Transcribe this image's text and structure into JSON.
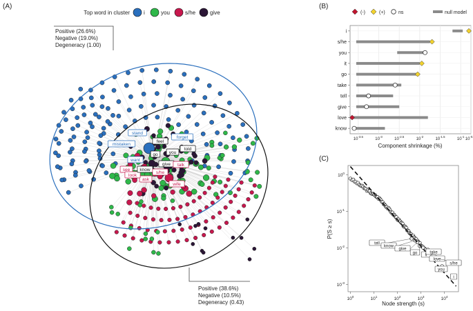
{
  "panels": {
    "a": "(A)",
    "b": "(B)",
    "c": "(C)"
  },
  "colors": {
    "i": "#2a6fbd",
    "you": "#2fb84a",
    "she": "#c8184e",
    "give": "#2b1636",
    "null_model": "#8a8a8a",
    "neg_marker": "#c0152f",
    "pos_marker": "#f2d22e"
  },
  "chart_data": [
    {
      "type": "network",
      "title": "Top word in cluster",
      "legend": [
        {
          "key": "i",
          "label": "i"
        },
        {
          "key": "you",
          "label": "you"
        },
        {
          "key": "she",
          "label": "s/he"
        },
        {
          "key": "give",
          "label": "give"
        }
      ],
      "cluster_blue": {
        "lines": [
          "Positive (26.6%)",
          "Negative (19.0%)",
          "Degeneracy (1.00)"
        ],
        "positive_pct": 26.6,
        "negative_pct": 19.0,
        "degeneracy": 1.0
      },
      "cluster_black": {
        "lines": [
          "Positive (38.6%)",
          "Negative (10.5%)",
          "Degeneracy (0.43)"
        ],
        "positive_pct": 38.6,
        "negative_pct": 10.5,
        "degeneracy": 0.43
      },
      "node_labels": [
        "stand",
        "mistaken",
        "feel",
        "forget",
        "want",
        "see",
        "give",
        "ask",
        "look",
        "know",
        "s/he",
        "talk",
        "wife",
        "you",
        "go",
        "told"
      ]
    },
    {
      "type": "dot-range",
      "xlabel": "Component shrinkage (%)",
      "x_scale": "log10",
      "xlim_log": [
        -3.7,
        -0.75
      ],
      "ticks": [
        {
          "log": -3.5,
          "label": "10^-3.5"
        },
        {
          "log": -3.0,
          "label": "10^-3"
        },
        {
          "log": -2.5,
          "label": "10^-2.5"
        },
        {
          "log": -2.0,
          "label": "10^-2"
        },
        {
          "log": -1.5,
          "label": "10^-1.5"
        },
        {
          "log": -1.0,
          "label": "10^-1"
        },
        {
          "log": -0.75,
          "label": "10^-0.75"
        }
      ],
      "legend": [
        "(-)",
        "(+)",
        "ns",
        "null model"
      ],
      "rows": [
        {
          "word": "i",
          "null": [
            -1.2,
            -0.95
          ],
          "value": -0.8,
          "sig": "pos"
        },
        {
          "word": "s/he",
          "null": [
            -3.55,
            -1.75
          ],
          "value": -1.7,
          "sig": "pos"
        },
        {
          "word": "you",
          "null": [
            -2.55,
            -1.85
          ],
          "value": -1.87,
          "sig": "ns"
        },
        {
          "word": "it",
          "null": [
            -3.55,
            -2.0
          ],
          "value": -1.95,
          "sig": "pos"
        },
        {
          "word": "go",
          "null": [
            -3.55,
            -2.05
          ],
          "value": -2.05,
          "sig": "pos"
        },
        {
          "word": "take",
          "null": [
            -3.55,
            -2.45
          ],
          "value": -2.6,
          "sig": "ns"
        },
        {
          "word": "tell",
          "null": [
            -3.55,
            -2.65
          ],
          "value": -3.25,
          "sig": "ns"
        },
        {
          "word": "give",
          "null": [
            -3.55,
            -2.5
          ],
          "value": -3.3,
          "sig": "ns"
        },
        {
          "word": "love",
          "null": [
            -3.65,
            -1.8
          ],
          "value": -3.65,
          "sig": "neg"
        },
        {
          "word": "know",
          "null": [
            -3.6,
            -2.85
          ],
          "value": -3.6,
          "sig": "ns"
        }
      ]
    },
    {
      "type": "scatter",
      "x_scale": "log10",
      "y_scale": "log10",
      "xlabel": "Node strength (s)",
      "ylabel": "P(S ≥ s)",
      "xlim_log": [
        -0.1,
        4.6
      ],
      "ylim_log": [
        -3.2,
        0.25
      ],
      "x_ticks": [
        {
          "log": 0,
          "label": "10^0"
        },
        {
          "log": 1,
          "label": "10^1"
        },
        {
          "log": 2,
          "label": "10^2"
        },
        {
          "log": 3,
          "label": "10^3"
        },
        {
          "log": 4,
          "label": "10^4"
        }
      ],
      "y_ticks": [
        {
          "log": 0,
          "label": "10^0"
        },
        {
          "log": -1,
          "label": "10^-1"
        },
        {
          "log": -2,
          "label": "10^-2"
        },
        {
          "log": -3,
          "label": "10^-3"
        }
      ],
      "fit_line": {
        "x_log": [
          0,
          4.5
        ],
        "y_log": [
          0.22,
          -3.05
        ]
      },
      "labeled_points": [
        {
          "label": "tell",
          "x_log": 2.6,
          "y_log": -1.75
        },
        {
          "label": "know",
          "x_log": 2.75,
          "y_log": -1.8
        },
        {
          "label": "give",
          "x_log": 2.85,
          "y_log": -1.85
        },
        {
          "label": "go",
          "x_log": 2.95,
          "y_log": -1.95
        },
        {
          "label": "it",
          "x_log": 3.1,
          "y_log": -2.0
        },
        {
          "label": "take",
          "x_log": 3.3,
          "y_log": -2.05
        },
        {
          "label": "love",
          "x_log": 3.45,
          "y_log": -2.15
        },
        {
          "label": "s/he",
          "x_log": 3.75,
          "y_log": -2.3
        },
        {
          "label": "you",
          "x_log": 3.9,
          "y_log": -2.5
        },
        {
          "label": "i",
          "x_log": 4.4,
          "y_log": -2.8
        }
      ]
    }
  ]
}
